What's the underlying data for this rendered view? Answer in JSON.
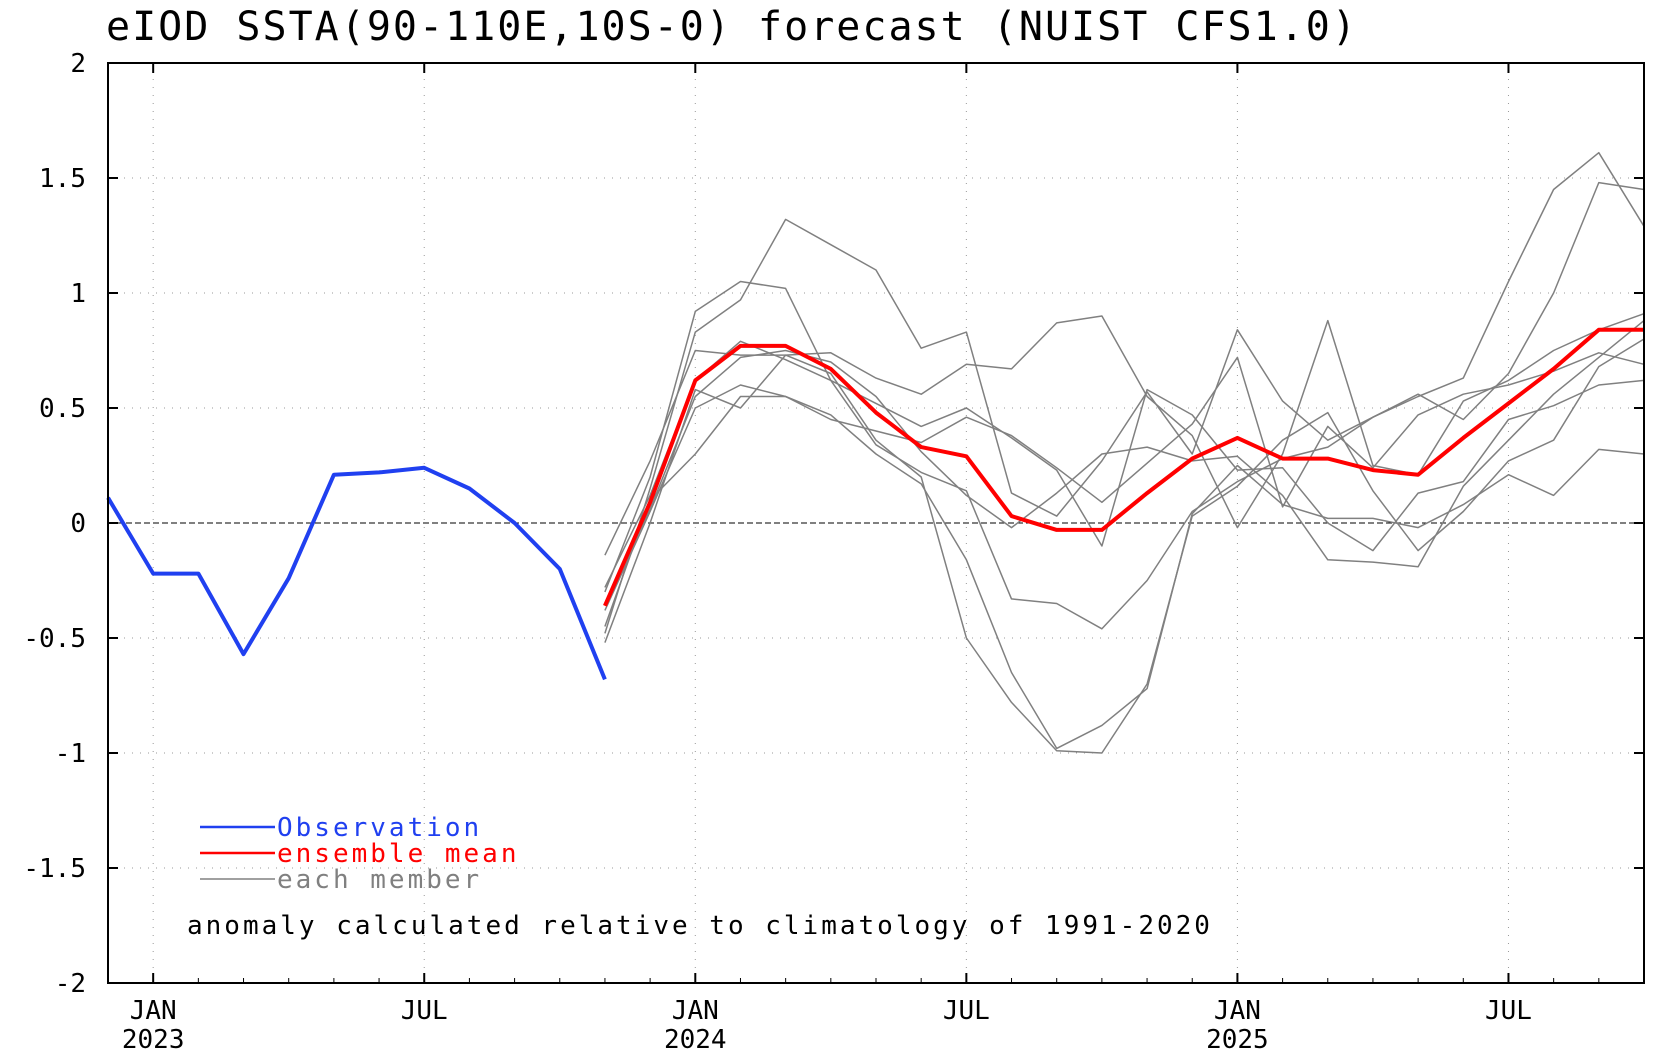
{
  "chart_data": {
    "type": "line",
    "title": "eIOD SSTA(90-110E,10S-0) forecast (NUIST CFS1.0)",
    "note": "anomaly calculated relative to climatology of 1991-2020",
    "ylim": [
      -2,
      2
    ],
    "y_ticks": [
      "2",
      "1.5",
      "1",
      "0.5",
      "0",
      "-0.5",
      "-1",
      "-1.5",
      "-2"
    ],
    "y_tick_values": [
      2,
      1.5,
      1,
      0.5,
      0,
      -0.5,
      -1,
      -1.5,
      -2
    ],
    "x_range": [
      "2022-12",
      "2025-10"
    ],
    "x_ticks": [
      {
        "month": "2023-01",
        "line1": "JAN",
        "line2": "2023"
      },
      {
        "month": "2023-07",
        "line1": "JUL",
        "line2": ""
      },
      {
        "month": "2024-01",
        "line1": "JAN",
        "line2": "2024"
      },
      {
        "month": "2024-07",
        "line1": "JUL",
        "line2": ""
      },
      {
        "month": "2025-01",
        "line1": "JAN",
        "line2": "2025"
      },
      {
        "month": "2025-07",
        "line1": "JUL",
        "line2": ""
      }
    ],
    "zero_line": true,
    "grid": "dotted",
    "legend": [
      {
        "label": "Observation",
        "color": "#2040f0"
      },
      {
        "label": "ensemble mean",
        "color": "#ff0000"
      },
      {
        "label": "each member",
        "color": "#808080"
      }
    ],
    "legend_position": "bottom-left",
    "observation": {
      "color": "#2040f0",
      "x": [
        "2022-12",
        "2023-01",
        "2023-02",
        "2023-03",
        "2023-04",
        "2023-05",
        "2023-06",
        "2023-07",
        "2023-08",
        "2023-09",
        "2023-10",
        "2023-11",
        "2023-12"
      ],
      "y": [
        0.11,
        -0.22,
        -0.22,
        -0.57,
        -0.24,
        0.21,
        0.22,
        0.24,
        0.15,
        0.0,
        -0.2,
        -0.68,
        null
      ]
    },
    "ensemble_mean": {
      "color": "#ff0000",
      "x": [
        "2023-11",
        "2023-12",
        "2024-01",
        "2024-02",
        "2024-03",
        "2024-04",
        "2024-05",
        "2024-06",
        "2024-07",
        "2024-08",
        "2024-09",
        "2024-10",
        "2024-11",
        "2024-12",
        "2025-01",
        "2025-02",
        "2025-03",
        "2025-04",
        "2025-05",
        "2025-06",
        "2025-07",
        "2025-08",
        "2025-09",
        "2025-10"
      ],
      "y": [
        -0.36,
        0.09,
        0.62,
        0.77,
        0.77,
        0.67,
        0.48,
        0.33,
        0.29,
        0.03,
        -0.03,
        -0.03,
        0.13,
        0.28,
        0.37,
        0.28,
        0.28,
        0.23,
        0.21,
        0.37,
        0.52,
        0.67,
        0.84,
        0.84
      ]
    },
    "members": {
      "color": "#808080",
      "x": [
        "2023-11",
        "2023-12",
        "2024-01",
        "2024-02",
        "2024-03",
        "2024-04",
        "2024-05",
        "2024-06",
        "2024-07",
        "2024-08",
        "2024-09",
        "2024-10",
        "2024-11",
        "2024-12",
        "2025-01",
        "2025-02",
        "2025-03",
        "2025-04",
        "2025-05",
        "2025-06",
        "2025-07",
        "2025-08",
        "2025-09",
        "2025-10"
      ],
      "series": [
        [
          -0.3,
          0.2,
          0.92,
          1.05,
          1.02,
          0.62,
          0.34,
          0.22,
          0.14,
          -0.33,
          -0.35,
          -0.46,
          -0.25,
          0.05,
          0.18,
          0.28,
          0.33,
          0.46,
          0.55,
          0.63,
          1.05,
          1.45,
          1.61,
          1.29
        ],
        [
          -0.48,
          0.15,
          0.83,
          0.97,
          1.32,
          1.21,
          1.1,
          0.76,
          0.83,
          0.13,
          0.03,
          0.27,
          0.57,
          0.3,
          0.84,
          0.53,
          0.36,
          0.46,
          0.56,
          0.45,
          0.65,
          1.0,
          1.48,
          1.45
        ],
        [
          -0.52,
          0.0,
          0.58,
          0.5,
          0.73,
          0.65,
          0.36,
          0.2,
          -0.5,
          -0.78,
          -0.99,
          -1.0,
          -0.7,
          0.03,
          0.16,
          0.36,
          0.48,
          0.14,
          -0.12,
          0.05,
          0.27,
          0.36,
          0.68,
          0.8
        ],
        [
          -0.45,
          0.1,
          0.3,
          0.55,
          0.55,
          0.47,
          0.3,
          0.17,
          -0.16,
          -0.65,
          -0.98,
          -0.88,
          -0.72,
          0.04,
          0.25,
          0.08,
          0.02,
          0.02,
          -0.02,
          0.08,
          0.21,
          0.12,
          0.32,
          0.3
        ],
        [
          -0.38,
          0.05,
          0.5,
          0.6,
          0.55,
          0.45,
          0.4,
          0.35,
          0.46,
          0.38,
          0.24,
          0.09,
          0.26,
          0.43,
          0.72,
          0.07,
          0.42,
          0.24,
          0.47,
          0.56,
          0.6,
          0.66,
          0.74,
          0.69
        ],
        [
          -0.28,
          0.12,
          0.62,
          0.79,
          0.71,
          0.62,
          0.52,
          0.42,
          0.5,
          0.37,
          0.23,
          -0.1,
          0.58,
          0.47,
          0.23,
          0.24,
          0.0,
          -0.12,
          0.13,
          0.18,
          0.45,
          0.51,
          0.6,
          0.62
        ],
        [
          -0.14,
          0.27,
          0.75,
          0.73,
          0.73,
          0.74,
          0.63,
          0.56,
          0.69,
          0.67,
          0.87,
          0.9,
          0.55,
          0.38,
          -0.02,
          0.3,
          0.88,
          0.25,
          0.21,
          0.53,
          0.62,
          0.75,
          0.84,
          0.91
        ],
        [
          -0.35,
          0.06,
          0.55,
          0.72,
          0.75,
          0.7,
          0.55,
          0.31,
          0.12,
          -0.02,
          0.13,
          0.3,
          0.33,
          0.27,
          0.29,
          0.12,
          -0.16,
          -0.17,
          -0.19,
          0.16,
          0.36,
          0.56,
          0.72,
          0.88
        ]
      ]
    }
  }
}
